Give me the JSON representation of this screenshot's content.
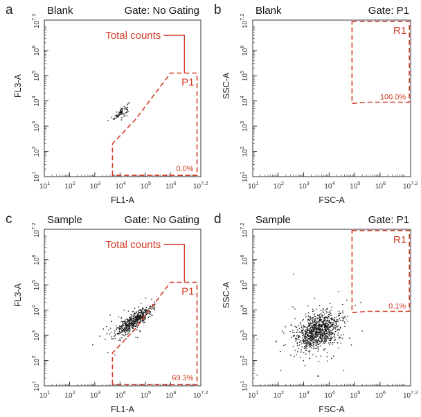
{
  "colors": {
    "gate": "#d23b26",
    "dots": "#1a1a1a",
    "axis": "#333333"
  },
  "chart_data": [
    {
      "id": "a",
      "type": "scatter",
      "panel_label": "a",
      "sample": "Blank",
      "gate_title": "Gate: No Gating",
      "xlabel": "FL1-A",
      "ylabel": "FL3-A",
      "log_scale": true,
      "xlim_exponent": [
        1,
        7.2
      ],
      "ylim_exponent": [
        1,
        7.2
      ],
      "tick_labels": [
        {
          "base": "10",
          "exp": "1"
        },
        {
          "base": "10",
          "exp": "2"
        },
        {
          "base": "10",
          "exp": "3"
        },
        {
          "base": "10",
          "exp": "4"
        },
        {
          "base": "10",
          "exp": "5"
        },
        {
          "base": "10",
          "exp": "6"
        },
        {
          "base": "10",
          "exp": "7.2"
        }
      ],
      "gate": {
        "name": "P1",
        "percent": "0.0%",
        "vertices_log10": [
          [
            3.7,
            1.05
          ],
          [
            3.7,
            2.3
          ],
          [
            4.6,
            3.25
          ],
          [
            6.0,
            5.1
          ],
          [
            7.05,
            5.1
          ],
          [
            7.05,
            1.05
          ]
        ]
      },
      "annotation": {
        "text": "Total counts",
        "points_to_log10": [
          6.55,
          5.1
        ]
      },
      "events": {
        "count": 80,
        "clusters": [
          {
            "center_log10": [
              4.05,
              3.55
            ],
            "spread": [
              0.15,
              0.15
            ],
            "corr": 0.7,
            "n": 80
          }
        ]
      }
    },
    {
      "id": "b",
      "type": "scatter",
      "panel_label": "b",
      "sample": "Blank",
      "gate_title": "Gate: P1",
      "xlabel": "FSC-A",
      "ylabel": "SSC-A",
      "log_scale": true,
      "xlim_exponent": [
        1,
        7.2
      ],
      "ylim_exponent": [
        1,
        7.2
      ],
      "tick_labels": [
        {
          "base": "10",
          "exp": "1"
        },
        {
          "base": "10",
          "exp": "2"
        },
        {
          "base": "10",
          "exp": "3"
        },
        {
          "base": "10",
          "exp": "4"
        },
        {
          "base": "10",
          "exp": "5"
        },
        {
          "base": "10",
          "exp": "6"
        },
        {
          "base": "10",
          "exp": "7.2"
        }
      ],
      "gate": {
        "name": "R1",
        "percent": "100.0%",
        "vertices_log10": [
          [
            4.9,
            7.15
          ],
          [
            7.15,
            7.15
          ],
          [
            7.15,
            3.95
          ],
          [
            5.5,
            3.95
          ],
          [
            4.9,
            3.9
          ]
        ]
      },
      "annotation": null,
      "events": {
        "count": 0,
        "clusters": []
      }
    },
    {
      "id": "c",
      "type": "scatter",
      "panel_label": "c",
      "sample": "Sample",
      "gate_title": "Gate: No Gating",
      "xlabel": "FL1-A",
      "ylabel": "FL3-A",
      "log_scale": true,
      "xlim_exponent": [
        1,
        7.2
      ],
      "ylim_exponent": [
        1,
        7.2
      ],
      "tick_labels": [
        {
          "base": "10",
          "exp": "1"
        },
        {
          "base": "10",
          "exp": "2"
        },
        {
          "base": "10",
          "exp": "3"
        },
        {
          "base": "10",
          "exp": "4"
        },
        {
          "base": "10",
          "exp": "5"
        },
        {
          "base": "10",
          "exp": "6"
        },
        {
          "base": "10",
          "exp": "7.2"
        }
      ],
      "gate": {
        "name": "P1",
        "percent": "69.3%",
        "vertices_log10": [
          [
            3.7,
            1.05
          ],
          [
            3.7,
            2.3
          ],
          [
            4.6,
            3.25
          ],
          [
            6.0,
            5.1
          ],
          [
            7.05,
            5.1
          ],
          [
            7.05,
            1.05
          ]
        ]
      },
      "annotation": {
        "text": "Total counts",
        "points_to_log10": [
          6.55,
          5.1
        ]
      },
      "events": {
        "count": 560,
        "clusters": [
          {
            "center_log10": [
              4.6,
              3.6
            ],
            "spread": [
              0.35,
              0.28
            ],
            "corr": 0.85,
            "n": 460
          },
          {
            "center_log10": [
              4.2,
              3.3
            ],
            "spread": [
              0.45,
              0.4
            ],
            "corr": 0.6,
            "n": 100
          }
        ]
      }
    },
    {
      "id": "d",
      "type": "scatter",
      "panel_label": "d",
      "sample": "Sample",
      "gate_title": "Gate: P1",
      "xlabel": "FSC-A",
      "ylabel": "SSC-A",
      "log_scale": true,
      "xlim_exponent": [
        1,
        7.2
      ],
      "ylim_exponent": [
        1,
        7.2
      ],
      "tick_labels": [
        {
          "base": "10",
          "exp": "1"
        },
        {
          "base": "10",
          "exp": "2"
        },
        {
          "base": "10",
          "exp": "3"
        },
        {
          "base": "10",
          "exp": "4"
        },
        {
          "base": "10",
          "exp": "5"
        },
        {
          "base": "10",
          "exp": "6"
        },
        {
          "base": "10",
          "exp": "7.2"
        }
      ],
      "gate": {
        "name": "R1",
        "percent": "0.1%",
        "vertices_log10": [
          [
            4.9,
            7.15
          ],
          [
            7.15,
            7.15
          ],
          [
            7.15,
            3.95
          ],
          [
            5.5,
            3.95
          ],
          [
            4.9,
            3.9
          ]
        ]
      },
      "annotation": null,
      "events": {
        "count": 1000,
        "clusters": [
          {
            "center_log10": [
              3.55,
              3.15
            ],
            "spread": [
              0.42,
              0.38
            ],
            "corr": 0.35,
            "n": 920
          },
          {
            "center_log10": [
              3.2,
              2.9
            ],
            "spread": [
              0.9,
              0.75
            ],
            "corr": 0.3,
            "n": 80
          }
        ]
      }
    }
  ]
}
